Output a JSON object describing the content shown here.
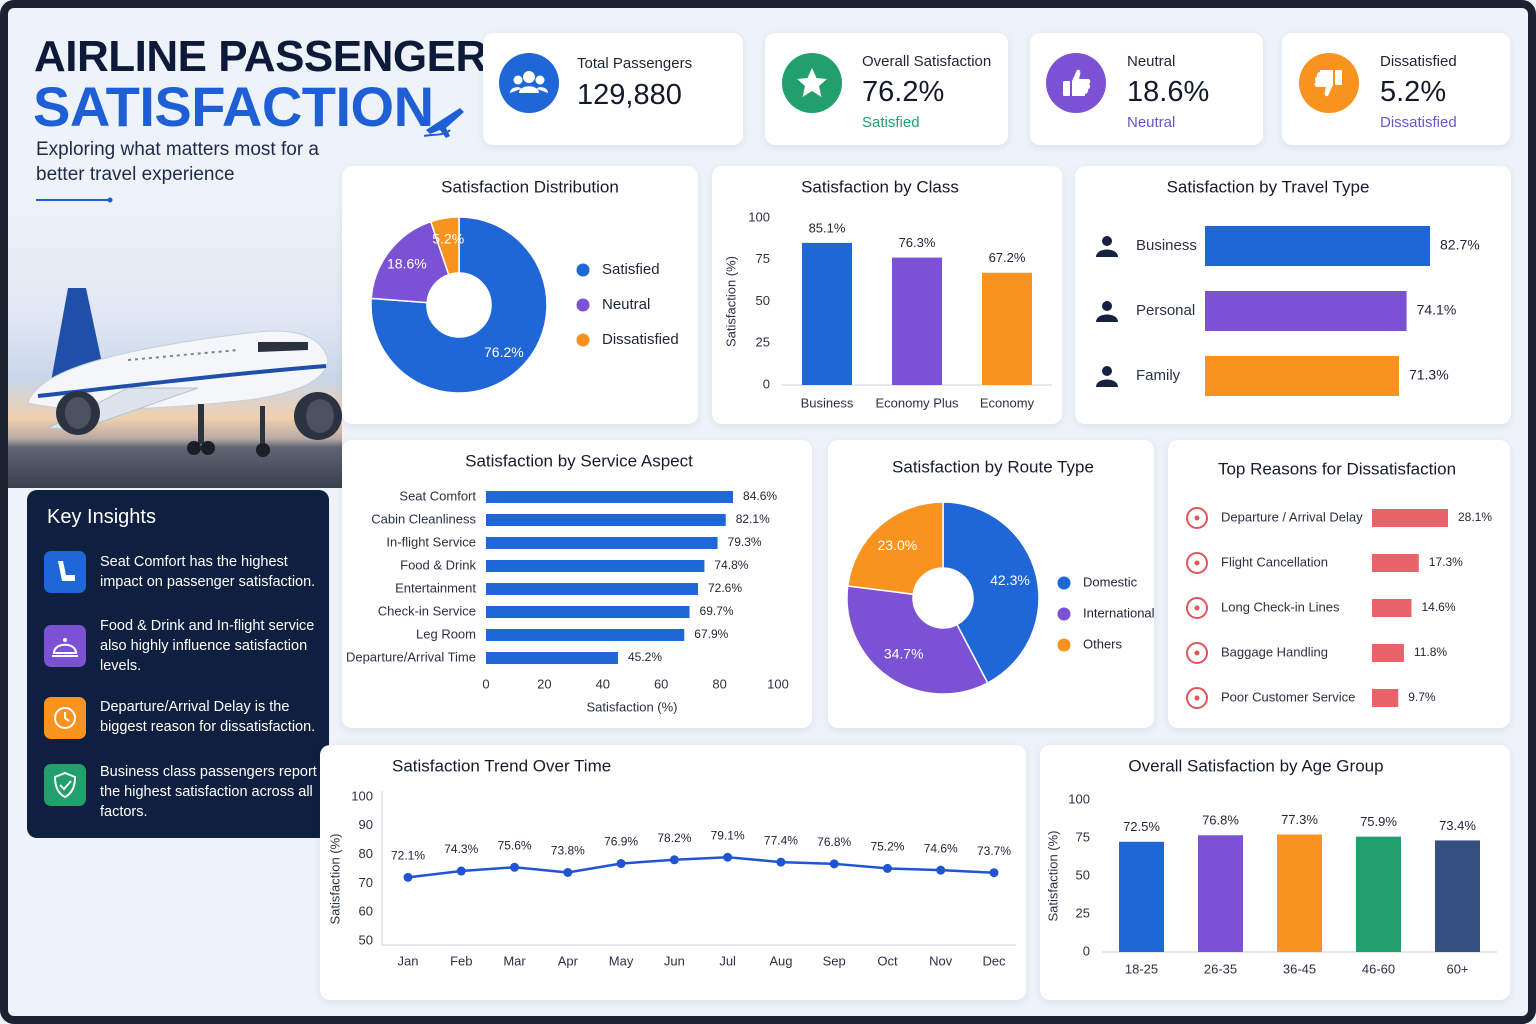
{
  "header": {
    "title_line1": "AIRLINE PASSENGER",
    "title_line2": "SATISFACTION",
    "subtitle": "Exploring what matters most for a better travel experience"
  },
  "kpis": [
    {
      "label": "Total Passengers",
      "value": "129,880"
    },
    {
      "label": "Overall Satisfaction",
      "value": "76.2%",
      "note": "Satisfied"
    },
    {
      "label": "Neutral",
      "value": "18.6%",
      "note": "Neutral"
    },
    {
      "label": "Dissatisfied",
      "value": "5.2%",
      "note": "Dissatisfied"
    }
  ],
  "insights": {
    "title": "Key Insights",
    "items": [
      "Seat Comfort has the highest impact on passenger satisfaction.",
      "Food & Drink and In-flight service also highly influence satisfaction levels.",
      "Departure/Arrival Delay is the biggest reason for dissatisfaction.",
      "Business class passengers report the highest satisfaction across all factors."
    ]
  },
  "chart_data": [
    {
      "type": "donut",
      "title": "Satisfaction Distribution",
      "categories": [
        "Satisfied",
        "Neutral",
        "Dissatisfied"
      ],
      "values": [
        76.2,
        18.6,
        5.2
      ],
      "value_labels": [
        "76.2%",
        "18.6%",
        "5.2%"
      ],
      "colors": [
        "#1f66d6",
        "#7b52d3",
        "#f7931e"
      ],
      "legend": "right"
    },
    {
      "type": "bar",
      "title": "Satisfaction by Class",
      "categories": [
        "Business",
        "Economy Plus",
        "Economy"
      ],
      "values": [
        85.1,
        76.3,
        67.2
      ],
      "value_labels": [
        "85.1%",
        "76.3%",
        "67.2%"
      ],
      "colors": [
        "#1f66d6",
        "#7b52d3",
        "#f7931e"
      ],
      "ylabel": "Satisfaction (%)",
      "ylim": [
        0,
        100
      ],
      "yticks": [
        0,
        25,
        50,
        75,
        100
      ],
      "grid": false
    },
    {
      "type": "hbar",
      "title": "Satisfaction by Travel Type",
      "categories": [
        "Business",
        "Personal",
        "Family"
      ],
      "values": [
        82.7,
        74.1,
        71.3
      ],
      "value_labels": [
        "82.7%",
        "74.1%",
        "71.3%"
      ],
      "colors": [
        "#1f66d6",
        "#7b52d3",
        "#f7931e"
      ]
    },
    {
      "type": "hbar",
      "title": "Satisfaction by Service Aspect",
      "categories": [
        "Seat Comfort",
        "Cabin Cleanliness",
        "In-flight Service",
        "Food & Drink",
        "Entertainment",
        "Check-in Service",
        "Leg Room",
        "Departure/Arrival Time"
      ],
      "values": [
        84.6,
        82.1,
        79.3,
        74.8,
        72.6,
        69.7,
        67.9,
        45.2
      ],
      "value_labels": [
        "84.6%",
        "82.1%",
        "79.3%",
        "74.8%",
        "72.6%",
        "69.7%",
        "67.9%",
        "45.2%"
      ],
      "color": "#1f66d6",
      "xlabel": "Satisfaction (%)",
      "xlim": [
        0,
        100
      ],
      "xticks": [
        0,
        20,
        40,
        60,
        80,
        100
      ]
    },
    {
      "type": "donut",
      "title": "Satisfaction by Route Type",
      "categories": [
        "Domestic",
        "International",
        "Others"
      ],
      "values": [
        42.3,
        34.7,
        23.0
      ],
      "value_labels": [
        "42.3%",
        "34.7%",
        "23.0%"
      ],
      "colors": [
        "#1f66d6",
        "#7b52d3",
        "#f7931e"
      ],
      "legend": "right"
    },
    {
      "type": "hbar",
      "title": "Top Reasons for Dissatisfaction",
      "categories": [
        "Departure / Arrival Delay",
        "Flight Cancellation",
        "Long Check-in Lines",
        "Baggage Handling",
        "Poor Customer Service"
      ],
      "values": [
        28.1,
        17.3,
        14.6,
        11.8,
        9.7
      ],
      "value_labels": [
        "28.1%",
        "17.3%",
        "14.6%",
        "11.8%",
        "9.7%"
      ],
      "color": "#e8646a"
    },
    {
      "type": "line",
      "title": "Satisfaction Trend Over Time",
      "categories": [
        "Jan",
        "Feb",
        "Mar",
        "Apr",
        "May",
        "Jun",
        "Jul",
        "Aug",
        "Sep",
        "Oct",
        "Nov",
        "Dec"
      ],
      "values": [
        72.1,
        74.3,
        75.6,
        73.8,
        76.9,
        78.2,
        79.1,
        77.4,
        76.8,
        75.2,
        74.6,
        73.7
      ],
      "value_labels": [
        "72.1%",
        "74.3%",
        "75.6%",
        "73.8%",
        "76.9%",
        "78.2%",
        "79.1%",
        "77.4%",
        "76.8%",
        "75.2%",
        "74.6%",
        "73.7%"
      ],
      "color": "#1f55d0",
      "ylabel": "Satisfaction (%)",
      "ylim": [
        50,
        100
      ],
      "yticks": [
        50,
        60,
        70,
        80,
        90,
        100
      ],
      "grid": false
    },
    {
      "type": "bar",
      "title": "Overall Satisfaction by Age Group",
      "categories": [
        "18-25",
        "26-35",
        "36-45",
        "46-60",
        "60+"
      ],
      "values": [
        72.5,
        76.8,
        77.3,
        75.9,
        73.4
      ],
      "value_labels": [
        "72.5%",
        "76.8%",
        "77.3%",
        "75.9%",
        "73.4%"
      ],
      "colors": [
        "#1f66d6",
        "#7b52d3",
        "#f7931e",
        "#22a06b",
        "#34507e"
      ],
      "ylabel": "Satisfaction (%)",
      "ylim": [
        0,
        100
      ],
      "yticks": [
        0,
        25,
        50,
        75,
        100
      ],
      "grid": false
    }
  ]
}
